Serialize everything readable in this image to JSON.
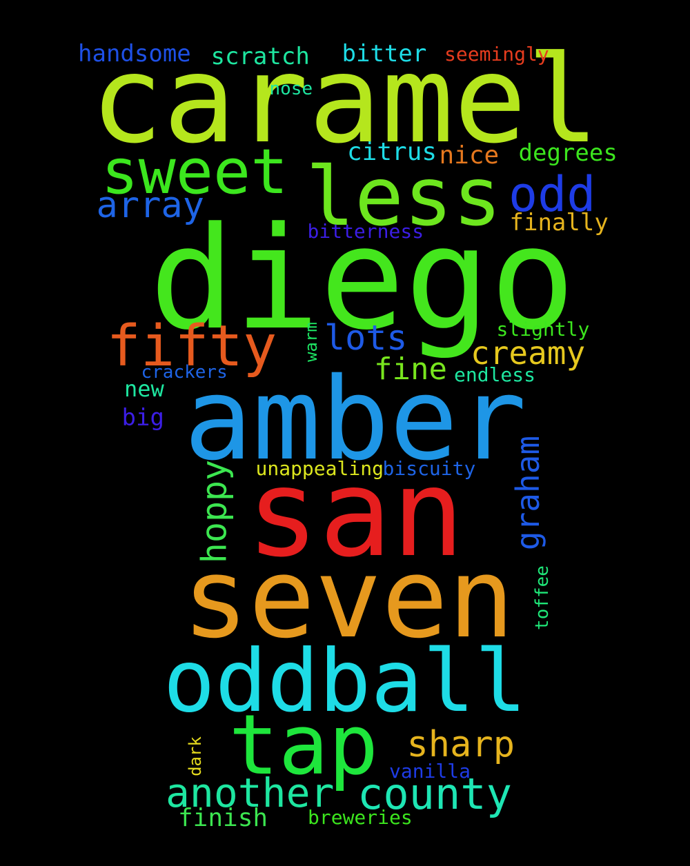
{
  "words": [
    {
      "text": "caramel",
      "color": "#b5e61d"
    },
    {
      "text": "diego",
      "color": "#44e61d"
    },
    {
      "text": "amber",
      "color": "#1e96e6"
    },
    {
      "text": "san",
      "color": "#e61e1e"
    },
    {
      "text": "seven",
      "color": "#e6991e"
    },
    {
      "text": "oddball",
      "color": "#1edce6"
    },
    {
      "text": "tap",
      "color": "#1ee63c"
    },
    {
      "text": "less",
      "color": "#6de61e"
    },
    {
      "text": "sweet",
      "color": "#3ce61e"
    },
    {
      "text": "fifty",
      "color": "#e65a1e"
    },
    {
      "text": "odd",
      "color": "#1e3ce6"
    },
    {
      "text": "county",
      "color": "#1ee6b4"
    },
    {
      "text": "another",
      "color": "#1ee6a0"
    },
    {
      "text": "array",
      "color": "#1e64e6"
    },
    {
      "text": "sharp",
      "color": "#e6b41e"
    },
    {
      "text": "lots",
      "color": "#1e5ae6"
    },
    {
      "text": "creamy",
      "color": "#e6c81e"
    },
    {
      "text": "fine",
      "color": "#78e61e"
    },
    {
      "text": "graham",
      "color": "#1e5ae6"
    },
    {
      "text": "hoppy",
      "color": "#3ce650"
    },
    {
      "text": "handsome",
      "color": "#1e50e6"
    },
    {
      "text": "scratch",
      "color": "#1ee6a0"
    },
    {
      "text": "bitter",
      "color": "#1edce6"
    },
    {
      "text": "seemingly",
      "color": "#e63c1e"
    },
    {
      "text": "nose",
      "color": "#1ee6a0"
    },
    {
      "text": "citrus",
      "color": "#1edce6"
    },
    {
      "text": "nice",
      "color": "#e6781e"
    },
    {
      "text": "degrees",
      "color": "#3ce61e"
    },
    {
      "text": "finally",
      "color": "#e6b41e"
    },
    {
      "text": "bitterness",
      "color": "#3c1ee6"
    },
    {
      "text": "slightly",
      "color": "#3ce61e"
    },
    {
      "text": "warm",
      "color": "#1ee664"
    },
    {
      "text": "crackers",
      "color": "#1e64e6"
    },
    {
      "text": "endless",
      "color": "#1ee6a0"
    },
    {
      "text": "new",
      "color": "#1ee6a0"
    },
    {
      "text": "big",
      "color": "#3c1ee6"
    },
    {
      "text": "unappealing",
      "color": "#dce61e"
    },
    {
      "text": "biscuity",
      "color": "#1e64e6"
    },
    {
      "text": "toffee",
      "color": "#1ee678"
    },
    {
      "text": "dark",
      "color": "#e6dc1e"
    },
    {
      "text": "vanilla",
      "color": "#1e3ce6"
    },
    {
      "text": "finish",
      "color": "#3ce650"
    },
    {
      "text": "breweries",
      "color": "#3ce61e"
    }
  ]
}
